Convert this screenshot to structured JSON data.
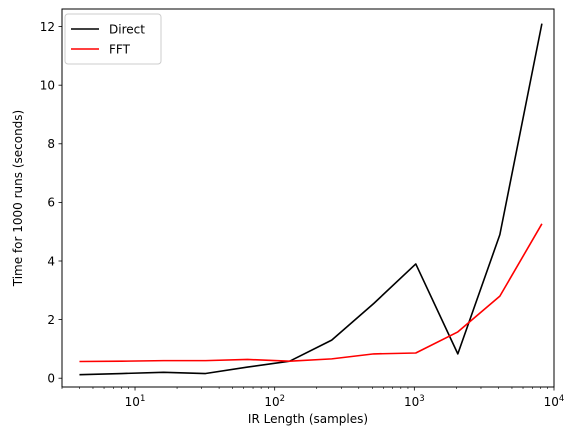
{
  "chart_data": {
    "type": "line",
    "xlabel": "IR Length (samples)",
    "ylabel": "Time for 1000 runs (seconds)",
    "xscale": "log",
    "xlim": [
      3,
      10000
    ],
    "ylim": [
      -0.3,
      12.6
    ],
    "grid": false,
    "legend_position": "top-left",
    "x": [
      4,
      8,
      16,
      32,
      64,
      128,
      256,
      512,
      1024,
      2048,
      4096,
      8192
    ],
    "series": [
      {
        "name": "Direct",
        "color": "#000000",
        "values": [
          0.12,
          0.16,
          0.2,
          0.16,
          0.38,
          0.58,
          1.3,
          2.55,
          3.9,
          0.83,
          4.9,
          12.1
        ]
      },
      {
        "name": "FFT",
        "color": "#ff0000",
        "values": [
          0.57,
          0.58,
          0.6,
          0.6,
          0.64,
          0.58,
          0.66,
          0.83,
          0.86,
          1.58,
          2.8,
          5.27
        ]
      }
    ],
    "y_ticks": [
      0,
      2,
      4,
      6,
      8,
      10,
      12
    ],
    "x_ticks": [
      {
        "value": 10,
        "base": "10",
        "exp": "1"
      },
      {
        "value": 100,
        "base": "10",
        "exp": "2"
      },
      {
        "value": 1000,
        "base": "10",
        "exp": "3"
      },
      {
        "value": 10000,
        "base": "10",
        "exp": "4"
      }
    ]
  }
}
